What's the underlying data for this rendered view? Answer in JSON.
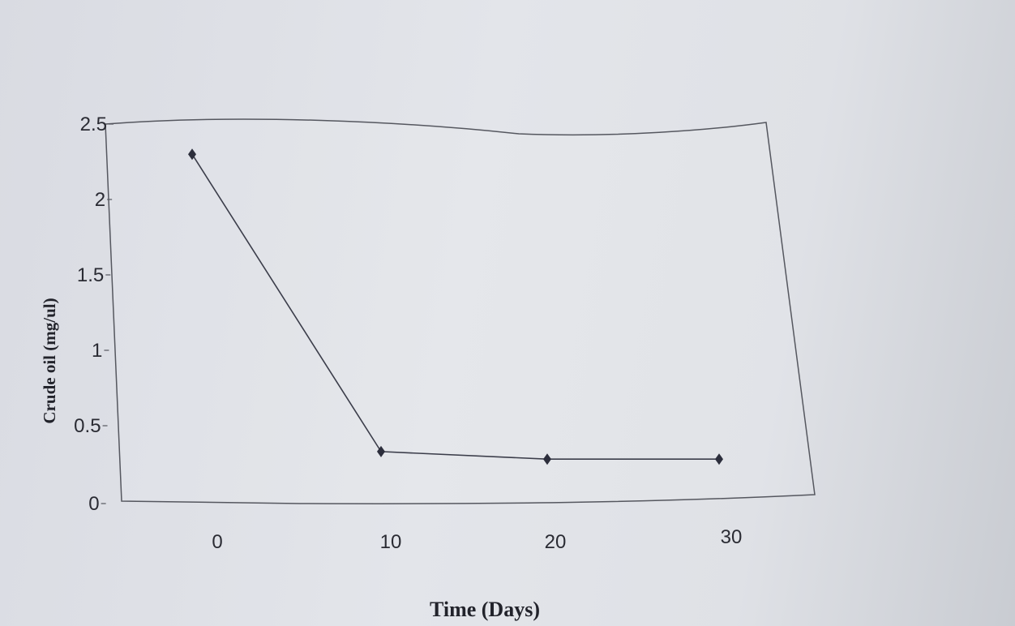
{
  "chart_data": {
    "type": "line",
    "title": "",
    "xlabel": "Time (Days)",
    "ylabel": "Crude oil (mg/ul)",
    "x": [
      0,
      10,
      20,
      30
    ],
    "x_tick_labels": [
      "0",
      "10",
      "20",
      "30"
    ],
    "series": [
      {
        "values": [
          2.3,
          0.35,
          0.3,
          0.3
        ]
      }
    ],
    "ylim": [
      0,
      2.5
    ],
    "y_ticks": [
      0,
      0.5,
      1,
      1.5,
      2,
      2.5
    ],
    "y_tick_labels": [
      "0",
      "0.5",
      "1",
      "1.5",
      "2",
      "2.5"
    ],
    "grid": false,
    "marker": "diamond",
    "colors": {
      "line": "#3b3d4a",
      "marker": "#2c2e3c",
      "axis": "#55575f"
    }
  }
}
